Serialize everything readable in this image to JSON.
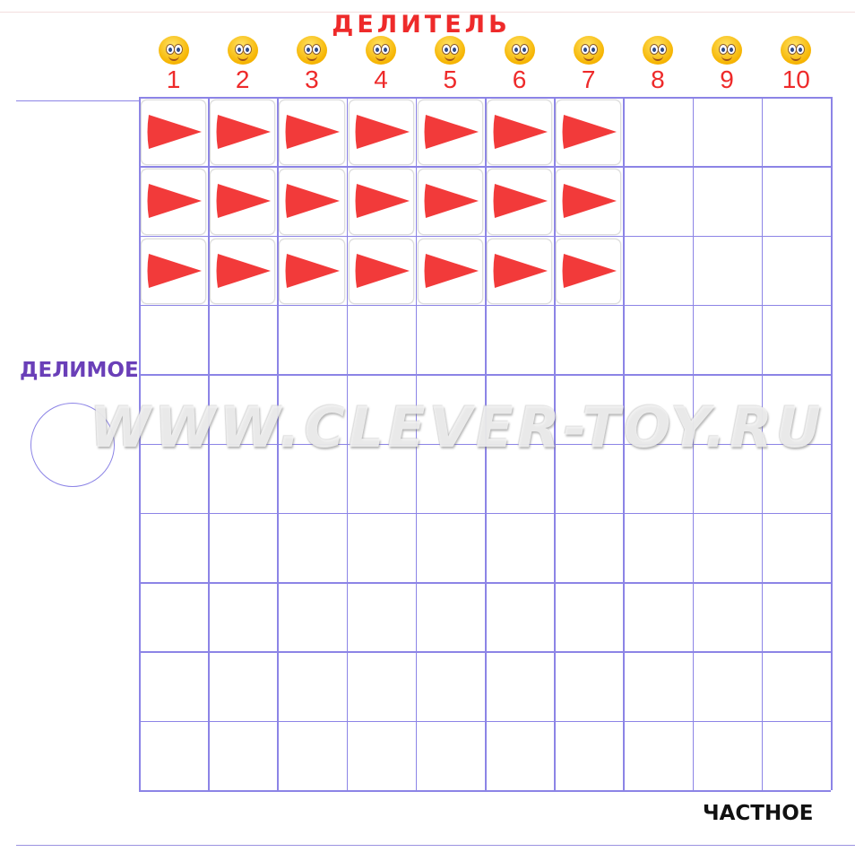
{
  "header": {
    "title": "ДЕЛИТЕЛЬ"
  },
  "columns": [
    {
      "label": "1",
      "icon": "smiley-face-icon"
    },
    {
      "label": "2",
      "icon": "smiley-face-icon"
    },
    {
      "label": "3",
      "icon": "smiley-face-icon"
    },
    {
      "label": "4",
      "icon": "smiley-face-icon"
    },
    {
      "label": "5",
      "icon": "smiley-face-icon"
    },
    {
      "label": "6",
      "icon": "smiley-face-icon"
    },
    {
      "label": "7",
      "icon": "smiley-face-icon"
    },
    {
      "label": "8",
      "icon": "smiley-face-icon"
    },
    {
      "label": "9",
      "icon": "smiley-face-icon"
    },
    {
      "label": "10",
      "icon": "smiley-face-icon"
    }
  ],
  "grid": {
    "rows": 10,
    "cols": 10,
    "line_color": "#8c84e6"
  },
  "cards": {
    "rows": 3,
    "cols": 7,
    "icon": "red-wedge-icon",
    "color": "#f23a3a"
  },
  "labels": {
    "dividend": "ДЕЛИМОЕ",
    "quotient": "ЧАСТНОЕ"
  },
  "watermark": "WWW.CLEVER-TOY.RU",
  "colors": {
    "title": "#ee2a2a",
    "dividend": "#6a3fb8",
    "quotient": "#111111"
  }
}
